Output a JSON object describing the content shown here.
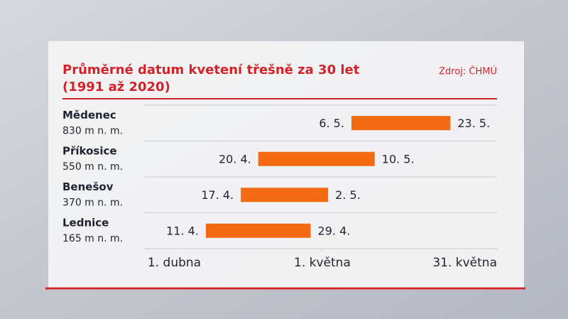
{
  "chart_data": {
    "type": "bar",
    "title": "Průměrné datum kvetení třešně za 30 let",
    "subtitle": "(1991 až 2020)",
    "source": "Zdroj: ČHMÚ",
    "categories": [
      "Mědenec",
      "Příkosice",
      "Benešov",
      "Lednice"
    ],
    "category_notes": [
      "830 m n. m.",
      "550 m n. m.",
      "370 m n. m.",
      "165 m n. m."
    ],
    "series": [
      {
        "values": [
          36,
          20,
          17,
          11
        ],
        "value_labels": [
          "6. 5.",
          "20. 4.",
          "17. 4.",
          "11. 4."
        ]
      },
      {
        "values": [
          53,
          40,
          32,
          29
        ],
        "value_labels": [
          "23. 5.",
          "10. 5.",
          "2. 5.",
          "29. 4."
        ]
      }
    ],
    "color": "#f26b12",
    "xlim": [
      0.4,
      61
    ],
    "xticks": [
      {
        "value": 1,
        "label": "1. dubna"
      },
      {
        "value": 31,
        "label": "1. května"
      },
      {
        "value": 61,
        "label": "31. května"
      }
    ]
  }
}
